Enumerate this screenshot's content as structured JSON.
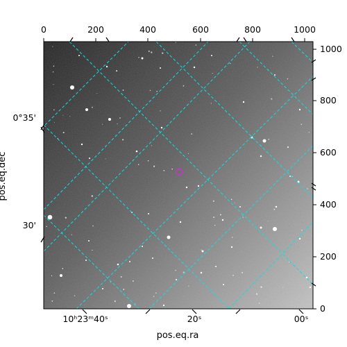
{
  "figure": {
    "xlabel": "pos.eq.ra",
    "ylabel": "pos.eq.dec",
    "pixel_x_ticks": [
      "0",
      "200",
      "400",
      "600",
      "800",
      "1000"
    ],
    "pixel_y_ticks": [
      "0",
      "200",
      "400",
      "600",
      "800",
      "1000"
    ],
    "ra_ticks": [
      "10ʰ23ᵐ40ˢ",
      "20ˢ",
      "00ˢ"
    ],
    "dec_ticks": [
      "0°35'",
      "30'"
    ],
    "grid_color": "#00e5e5",
    "marker_color": "#cc33cc"
  },
  "image": {
    "description_color_dark": "#262626",
    "description_color_light": "#bdbdbd"
  }
}
